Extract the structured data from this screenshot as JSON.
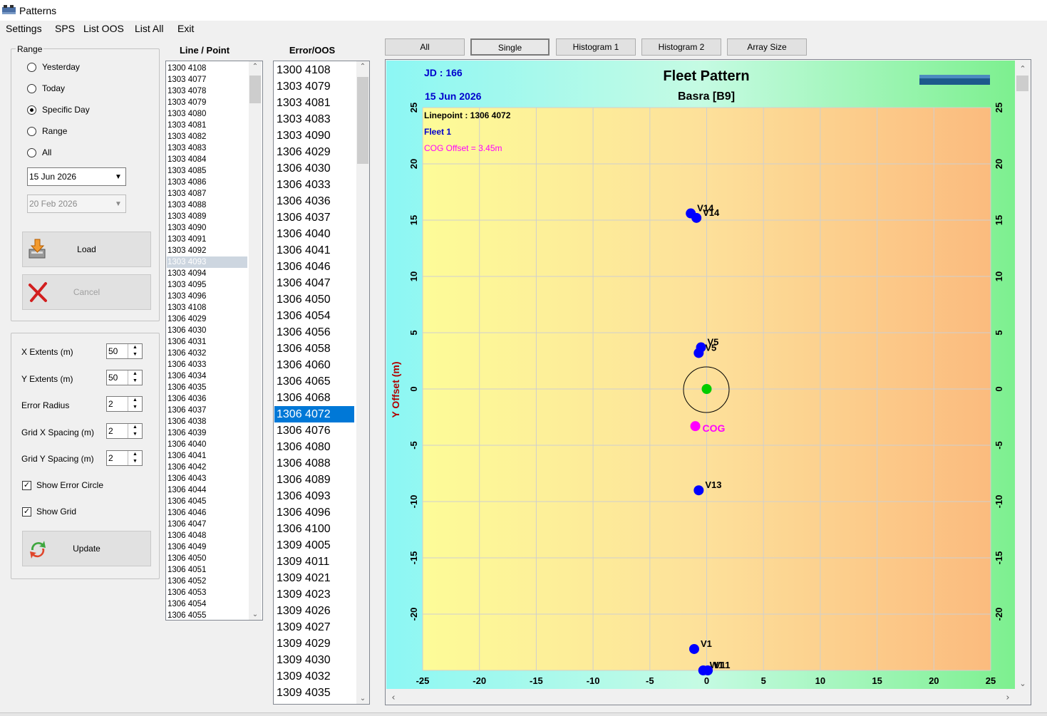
{
  "window": {
    "title": "Patterns"
  },
  "menu": [
    "Settings",
    "SPS",
    "List OOS",
    "List All",
    "Exit"
  ],
  "range": {
    "label": "Range",
    "options": [
      "Yesterday",
      "Today",
      "Specific Day",
      "Range",
      "All"
    ],
    "selected": "Specific Day",
    "date1": "15 Jun 2026",
    "date2": "20 Feb 2026"
  },
  "buttons": {
    "load": "Load",
    "cancel": "Cancel",
    "update": "Update"
  },
  "settings": {
    "x_extents_label": "X Extents (m)",
    "x_extents": "50",
    "y_extents_label": "Y Extents (m)",
    "y_extents": "50",
    "error_radius_label": "Error Radius",
    "error_radius": "2",
    "grid_x_label": "Grid X Spacing (m)",
    "grid_x": "2",
    "grid_y_label": "Grid Y Spacing (m)",
    "grid_y": "2",
    "show_error_circle": "Show Error Circle",
    "show_grid": "Show Grid"
  },
  "linepoint": {
    "header": "Line / Point",
    "items": [
      "1300 4108",
      "1303 4077",
      "1303 4078",
      "1303 4079",
      "1303 4080",
      "1303 4081",
      "1303 4082",
      "1303 4083",
      "1303 4084",
      "1303 4085",
      "1303 4086",
      "1303 4087",
      "1303 4088",
      "1303 4089",
      "1303 4090",
      "1303 4091",
      "1303 4092",
      "1303 4093",
      "1303 4094",
      "1303 4095",
      "1303 4096",
      "1303 4108",
      "1306 4029",
      "1306 4030",
      "1306 4031",
      "1306 4032",
      "1306 4033",
      "1306 4034",
      "1306 4035",
      "1306 4036",
      "1306 4037",
      "1306 4038",
      "1306 4039",
      "1306 4040",
      "1306 4041",
      "1306 4042",
      "1306 4043",
      "1306 4044",
      "1306 4045",
      "1306 4046",
      "1306 4047",
      "1306 4048",
      "1306 4049",
      "1306 4050",
      "1306 4051",
      "1306 4052",
      "1306 4053",
      "1306 4054",
      "1306 4055"
    ],
    "selected": "1303 4093"
  },
  "erroos": {
    "header": "Error/OOS",
    "items": [
      "1300 4108",
      "1303 4079",
      "1303 4081",
      "1303 4083",
      "1303 4090",
      "1306 4029",
      "1306 4030",
      "1306 4033",
      "1306 4036",
      "1306 4037",
      "1306 4040",
      "1306 4041",
      "1306 4046",
      "1306 4047",
      "1306 4050",
      "1306 4054",
      "1306 4056",
      "1306 4058",
      "1306 4060",
      "1306 4065",
      "1306 4068",
      "1306 4072",
      "1306 4076",
      "1306 4080",
      "1306 4088",
      "1306 4089",
      "1306 4093",
      "1306 4096",
      "1306 4100",
      "1309 4005",
      "1309 4011",
      "1309 4021",
      "1309 4023",
      "1309 4026",
      "1309 4027",
      "1309 4029",
      "1309 4030",
      "1309 4032",
      "1309 4035"
    ],
    "selected": "1306 4072"
  },
  "tabs": [
    "All",
    "Single",
    "Histogram 1",
    "Histogram 2",
    "Array Size"
  ],
  "active_tab": "Single",
  "chart_data": {
    "type": "scatter",
    "jd": "JD : 166",
    "date": "15 Jun 2026",
    "title": "Fleet Pattern",
    "subtitle": "Basra  [B9]",
    "linepoint": "Linepoint : 1306 4072",
    "fleet": "Fleet 1",
    "cog_offset": "COG Offset = 3.45m",
    "ylabel": "Y Offset (m)",
    "xlim": [
      -25,
      25
    ],
    "ylim": [
      -25,
      25
    ],
    "xticks": [
      -25,
      -20,
      -15,
      -10,
      -5,
      0,
      5,
      10,
      15,
      20,
      25
    ],
    "yticks": [
      -20,
      -15,
      -10,
      -5,
      0,
      5,
      10,
      15,
      20,
      25
    ],
    "grid": true,
    "error_radius": 2,
    "points": [
      {
        "label": "V14",
        "x": -1.4,
        "y": 15.6
      },
      {
        "label": "V14",
        "x": -0.9,
        "y": 15.2
      },
      {
        "label": "V5",
        "x": -0.5,
        "y": 3.7
      },
      {
        "label": "V5",
        "x": -0.7,
        "y": 3.2
      },
      {
        "label": "V13",
        "x": -0.7,
        "y": -9.0
      },
      {
        "label": "V1",
        "x": -1.1,
        "y": -23.1
      },
      {
        "label": "W1",
        "x": -0.3,
        "y": -25.0
      },
      {
        "label": "V11",
        "x": 0.1,
        "y": -25.0
      }
    ],
    "center": {
      "x": 0,
      "y": 0
    },
    "cog": {
      "label": "COG",
      "x": -1.0,
      "y": -3.3
    },
    "colors": {
      "vessel": "#0000ff",
      "center": "#00cc00",
      "cog": "#ff00ff",
      "jd": "#0000cc",
      "title": "#000000"
    }
  }
}
